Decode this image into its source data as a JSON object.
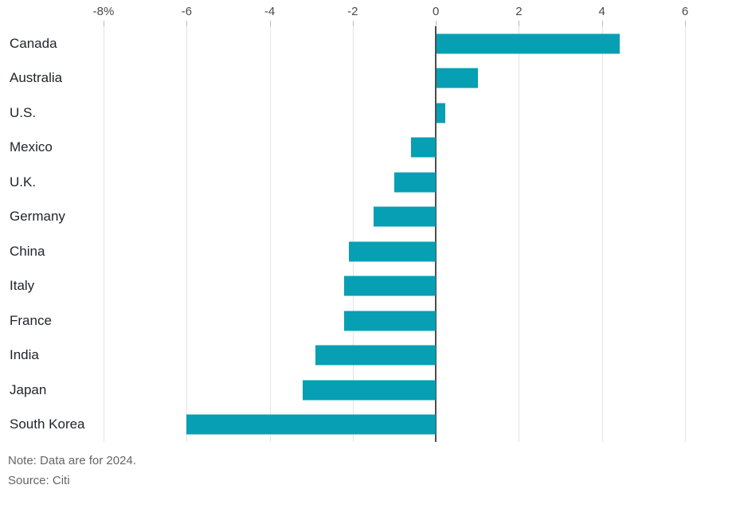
{
  "chart_data": {
    "type": "bar",
    "orientation": "horizontal",
    "categories": [
      "Canada",
      "Australia",
      "U.S.",
      "Mexico",
      "U.K.",
      "Germany",
      "China",
      "Italy",
      "France",
      "India",
      "Japan",
      "South Korea"
    ],
    "values": [
      4.4,
      1.0,
      0.2,
      -0.6,
      -1.0,
      -1.5,
      -2.1,
      -2.2,
      -2.2,
      -2.9,
      -3.2,
      -6.0
    ],
    "xlim": [
      -8,
      6
    ],
    "x_ticks": [
      {
        "value": -8,
        "label": "-8%"
      },
      {
        "value": -6,
        "label": "-6"
      },
      {
        "value": -4,
        "label": "-4"
      },
      {
        "value": -2,
        "label": "-2"
      },
      {
        "value": 0,
        "label": "0"
      },
      {
        "value": 2,
        "label": "2"
      },
      {
        "value": 4,
        "label": "4"
      },
      {
        "value": 6,
        "label": "6"
      }
    ],
    "grid": true,
    "legend": "none",
    "title": "",
    "xlabel": "",
    "ylabel": "",
    "colors": {
      "bar": "#069fb4",
      "gridline": "#e4e4e4",
      "zero_line": "#4d4d4d",
      "tick_text": "#4a4a4a",
      "category_text": "#21242c",
      "footer_text": "#65656b"
    }
  },
  "footer": {
    "note": "Note: Data are for 2024.",
    "source": "Source: Citi"
  }
}
